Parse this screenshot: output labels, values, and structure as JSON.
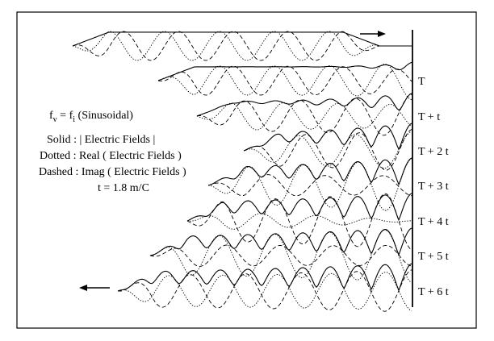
{
  "legend": {
    "freq": {
      "f": "f",
      "sub_v": "v",
      "eq": " = ",
      "sub_i": "i",
      "mode": " (Sinusoidal)"
    },
    "solid": "Solid : | Electric Fields |",
    "dotted": "Dotted : Real ( Electric Fields )",
    "dashed": "Dashed : Imag ( Electric Fields )",
    "tvalue": "t = 1.8 m/C"
  },
  "time_labels": [
    "T",
    "T + t",
    "T + 2 t",
    "T + 3 t",
    "T + 4 t",
    "T + 5 t",
    "T + 6 t"
  ],
  "arrows": {
    "top": "right",
    "bottom": "left"
  }
}
